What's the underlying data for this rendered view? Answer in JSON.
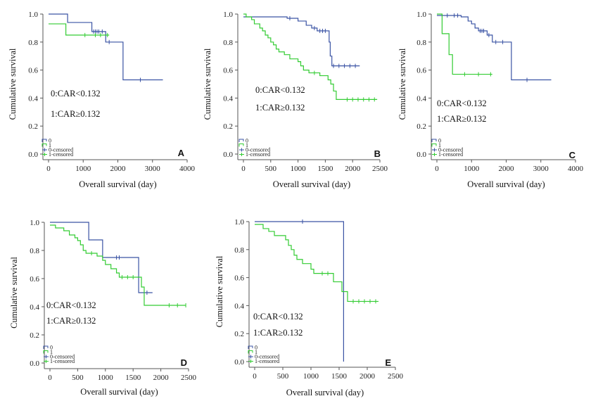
{
  "chart_data": [
    {
      "panel": "A",
      "type": "line",
      "xlabel": "Overall survival (day)",
      "ylabel": "Cumulative survival",
      "xlim": [
        0,
        4000
      ],
      "ylim": [
        0,
        1
      ],
      "xticks": [
        "0",
        "1000",
        "2000",
        "3000",
        "4000"
      ],
      "yticks": [
        "0.0",
        "0.2",
        "0.4",
        "0.6",
        "0.8",
        "1.0"
      ],
      "annotations": [
        "0:CAR<0.132",
        "1:CAR≥0.132"
      ],
      "legend": [
        "0",
        "1",
        "0-censored",
        "1-censored"
      ],
      "series": [
        {
          "name": "0",
          "color": "#3a53a4",
          "steps": [
            [
              0,
              1.0
            ],
            [
              550,
              0.94
            ],
            [
              1250,
              0.875
            ],
            [
              1650,
              0.8
            ],
            [
              2150,
              0.53
            ],
            [
              3300,
              0.53
            ]
          ],
          "censored": [
            1300,
            1350,
            1400,
            1450,
            1550,
            1750,
            2650
          ]
        },
        {
          "name": "1",
          "color": "#33cc33",
          "steps": [
            [
              0,
              0.93
            ],
            [
              500,
              0.85
            ],
            [
              1750,
              0.85
            ]
          ],
          "censored": [
            1050,
            1350,
            1500,
            1700
          ]
        }
      ]
    },
    {
      "panel": "B",
      "type": "line",
      "xlabel": "Overall survival (day)",
      "ylabel": "Cumulative survival",
      "xlim": [
        0,
        2500
      ],
      "ylim": [
        0,
        1
      ],
      "xticks": [
        "0",
        "500",
        "1000",
        "1500",
        "2000",
        "2500"
      ],
      "yticks": [
        "0.0",
        "0.2",
        "0.4",
        "0.6",
        "0.8",
        "1.0"
      ],
      "annotations": [
        "0:CAR<0.132",
        "1:CAR≥0.132"
      ],
      "legend": [
        "0",
        "1",
        "0-censored",
        "1-censored"
      ],
      "series": [
        {
          "name": "0",
          "color": "#3a53a4",
          "steps": [
            [
              0,
              0.98
            ],
            [
              800,
              0.97
            ],
            [
              1000,
              0.95
            ],
            [
              1150,
              0.92
            ],
            [
              1250,
              0.9
            ],
            [
              1350,
              0.88
            ],
            [
              1570,
              0.8
            ],
            [
              1590,
              0.7
            ],
            [
              1620,
              0.63
            ],
            [
              2130,
              0.63
            ]
          ],
          "censored": [
            850,
            1300,
            1400,
            1450,
            1500,
            1650,
            1750,
            1850,
            1950,
            2050
          ]
        },
        {
          "name": "1",
          "color": "#33cc33",
          "steps": [
            [
              0,
              1.0
            ],
            [
              50,
              0.98
            ],
            [
              150,
              0.96
            ],
            [
              200,
              0.93
            ],
            [
              300,
              0.9
            ],
            [
              350,
              0.88
            ],
            [
              400,
              0.85
            ],
            [
              450,
              0.83
            ],
            [
              500,
              0.8
            ],
            [
              550,
              0.78
            ],
            [
              600,
              0.75
            ],
            [
              650,
              0.73
            ],
            [
              750,
              0.71
            ],
            [
              850,
              0.68
            ],
            [
              1000,
              0.66
            ],
            [
              1050,
              0.63
            ],
            [
              1100,
              0.6
            ],
            [
              1200,
              0.58
            ],
            [
              1400,
              0.56
            ],
            [
              1550,
              0.53
            ],
            [
              1600,
              0.5
            ],
            [
              1650,
              0.45
            ],
            [
              1700,
              0.39
            ],
            [
              2450,
              0.39
            ]
          ],
          "censored": [
            1300,
            1900,
            2000,
            2100,
            2200,
            2300,
            2400
          ]
        }
      ]
    },
    {
      "panel": "C",
      "type": "line",
      "xlabel": "Overall survival (day)",
      "ylabel": "Cumulative survival",
      "xlim": [
        0,
        4000
      ],
      "ylim": [
        0,
        1
      ],
      "xticks": [
        "0",
        "1000",
        "2000",
        "3000",
        "4000"
      ],
      "yticks": [
        "0.0",
        "0.2",
        "0.4",
        "0.6",
        "0.8",
        "1.0"
      ],
      "annotations": [
        "0:CAR<0.132",
        "1:CAR≥0.132"
      ],
      "legend": [
        "0",
        "1",
        "0-censored",
        "1-censored"
      ],
      "series": [
        {
          "name": "0",
          "color": "#3a53a4",
          "steps": [
            [
              0,
              0.99
            ],
            [
              700,
              0.98
            ],
            [
              900,
              0.95
            ],
            [
              1000,
              0.93
            ],
            [
              1100,
              0.9
            ],
            [
              1200,
              0.88
            ],
            [
              1450,
              0.85
            ],
            [
              1600,
              0.8
            ],
            [
              2150,
              0.53
            ],
            [
              3300,
              0.53
            ]
          ],
          "censored": [
            300,
            500,
            600,
            1250,
            1300,
            1350,
            1500,
            1700,
            1900,
            2600
          ]
        },
        {
          "name": "1",
          "color": "#33cc33",
          "steps": [
            [
              0,
              1.0
            ],
            [
              150,
              0.86
            ],
            [
              350,
              0.71
            ],
            [
              450,
              0.57
            ],
            [
              1600,
              0.57
            ]
          ],
          "censored": [
            800,
            1200,
            1550
          ]
        }
      ]
    },
    {
      "panel": "D",
      "type": "line",
      "xlabel": "Overall survival (day)",
      "ylabel": "Cumulative survival",
      "xlim": [
        0,
        2500
      ],
      "ylim": [
        0,
        1
      ],
      "xticks": [
        "0",
        "500",
        "1000",
        "1500",
        "2000",
        "2500"
      ],
      "yticks": [
        "0.0",
        "0.2",
        "0.4",
        "0.6",
        "0.8",
        "1.0"
      ],
      "annotations": [
        "0:CAR<0.132",
        "1:CAR≥0.132"
      ],
      "legend": [
        "0",
        "1",
        "0-censored",
        "1-censored"
      ],
      "series": [
        {
          "name": "0",
          "color": "#3a53a4",
          "steps": [
            [
              0,
              1.0
            ],
            [
              700,
              0.875
            ],
            [
              950,
              0.75
            ],
            [
              1600,
              0.5
            ],
            [
              1850,
              0.5
            ]
          ],
          "censored": [
            1200,
            1250,
            1750
          ]
        },
        {
          "name": "1",
          "color": "#33cc33",
          "steps": [
            [
              0,
              0.98
            ],
            [
              100,
              0.96
            ],
            [
              250,
              0.94
            ],
            [
              350,
              0.91
            ],
            [
              450,
              0.89
            ],
            [
              500,
              0.87
            ],
            [
              550,
              0.84
            ],
            [
              600,
              0.8
            ],
            [
              650,
              0.78
            ],
            [
              850,
              0.76
            ],
            [
              950,
              0.73
            ],
            [
              1000,
              0.7
            ],
            [
              1100,
              0.67
            ],
            [
              1200,
              0.64
            ],
            [
              1250,
              0.61
            ],
            [
              1650,
              0.54
            ],
            [
              1700,
              0.41
            ],
            [
              2450,
              0.41
            ]
          ],
          "censored": [
            750,
            1300,
            1400,
            1500,
            2150,
            2300,
            2450
          ]
        }
      ]
    },
    {
      "panel": "E",
      "type": "line",
      "xlabel": "Overall survival (day)",
      "ylabel": "Cumulative survival",
      "xlim": [
        0,
        2500
      ],
      "ylim": [
        0,
        1
      ],
      "xticks": [
        "0",
        "500",
        "1000",
        "1500",
        "2000",
        "2500"
      ],
      "yticks": [
        "0.0",
        "0.2",
        "0.4",
        "0.6",
        "0.8",
        "1.0"
      ],
      "annotations": [
        "0:CAR<0.132",
        "1:CAR≥0.132"
      ],
      "legend": [
        "0",
        "1",
        "0-censored",
        "1-censored"
      ],
      "series": [
        {
          "name": "0",
          "color": "#3a53a4",
          "steps": [
            [
              0,
              1.0
            ],
            [
              1580,
              0.0
            ],
            [
              1580,
              0.0
            ]
          ],
          "censored": [
            850
          ]
        },
        {
          "name": "1",
          "color": "#33cc33",
          "steps": [
            [
              0,
              0.98
            ],
            [
              150,
              0.95
            ],
            [
              250,
              0.93
            ],
            [
              350,
              0.9
            ],
            [
              550,
              0.87
            ],
            [
              600,
              0.83
            ],
            [
              650,
              0.8
            ],
            [
              700,
              0.76
            ],
            [
              750,
              0.73
            ],
            [
              850,
              0.7
            ],
            [
              1000,
              0.66
            ],
            [
              1050,
              0.63
            ],
            [
              1400,
              0.57
            ],
            [
              1550,
              0.5
            ],
            [
              1650,
              0.43
            ],
            [
              2200,
              0.43
            ]
          ],
          "censored": [
            1200,
            1300,
            1750,
            1850,
            1950,
            2050,
            2150
          ]
        }
      ]
    }
  ]
}
